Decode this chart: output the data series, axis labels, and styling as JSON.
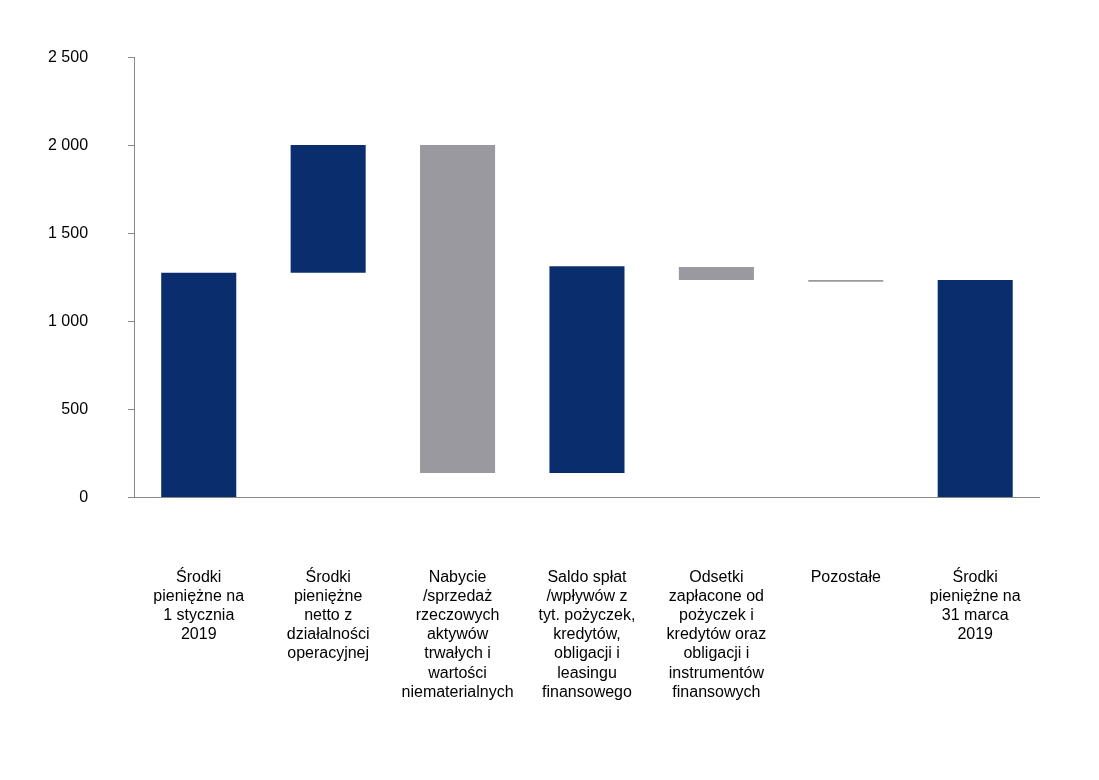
{
  "chart_data": {
    "type": "bar",
    "categories": [
      "Środki pieniężne na 1 stycznia 2019",
      "Środki pieniężne netto z działalności operacyjnej",
      "Nabycie /sprzedaż rzeczowych aktywów trwałych i wartości niematerialnych",
      "Saldo spłat /wpływów z tyt. pożyczek, kredytów, obligacji i leasingu finansowego",
      "Odsetki zapłacone od pożyczek i kredytów oraz obligacji i instrumentów finansowych",
      "Pozostałe",
      "Środki pieniężne na 31 marca 2019"
    ],
    "values": [
      1278,
      725,
      1863,
      1175,
      73,
      10,
      1237
    ],
    "base": [
      0,
      1278,
      140,
      140,
      1237,
      1227,
      0
    ],
    "colors": [
      "#0a2d6e",
      "#0a2d6e",
      "#9b99a0",
      "#0a2d6e",
      "#9b99a0",
      "#9b99a0",
      "#0a2d6e"
    ],
    "ylim": [
      0,
      2500
    ],
    "yticks": [
      0,
      500,
      {
        "value": 1000,
        "label": "1 000"
      },
      {
        "value": 1500,
        "label": "1 500"
      },
      {
        "value": 2000,
        "label": "2 000"
      },
      {
        "value": 2500,
        "label": "2 500"
      }
    ],
    "grid": false,
    "legend": false
  }
}
